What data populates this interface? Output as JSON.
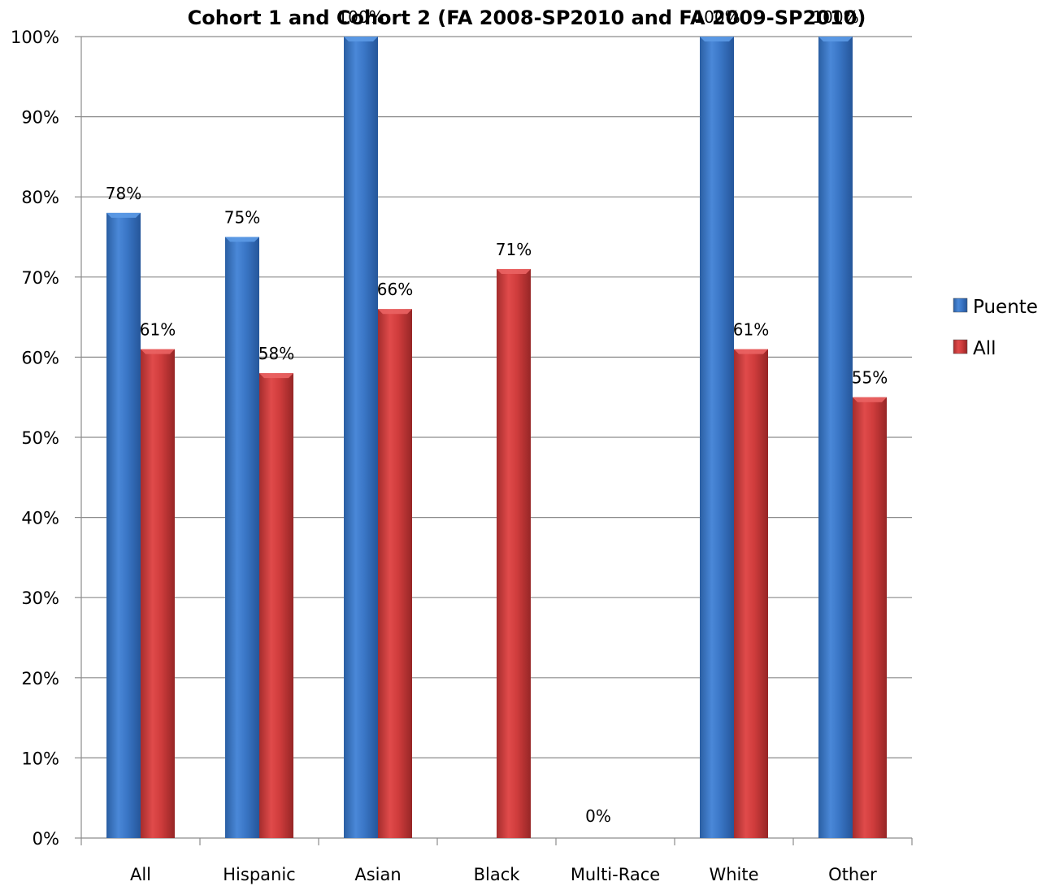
{
  "chart_data": {
    "type": "bar",
    "title": "Cohort 1 and Cohort 2 (FA 2008-SP2010 and FA 2009-SP2010)",
    "xlabel": "",
    "ylabel": "",
    "ylim": [
      0,
      1
    ],
    "yticks": [
      "0%",
      "10%",
      "20%",
      "30%",
      "40%",
      "50%",
      "60%",
      "70%",
      "80%",
      "90%",
      "100%"
    ],
    "categories": [
      "All",
      "Hispanic",
      "Asian",
      "Black",
      "Multi-Race",
      "White",
      "Other"
    ],
    "series": [
      {
        "name": "Puente",
        "color": "#3b78c8",
        "values": [
          0.78,
          0.75,
          1.0,
          null,
          0,
          1.0,
          1.0
        ],
        "labels": [
          "78%",
          "75%",
          "100%",
          "",
          "0%",
          "100%",
          "100%"
        ]
      },
      {
        "name": "All",
        "color": "#c83a3a",
        "values": [
          0.61,
          0.58,
          0.66,
          0.71,
          null,
          0.61,
          0.55
        ],
        "labels": [
          "61%",
          "58%",
          "66%",
          "71%",
          "",
          "61%",
          "55%"
        ]
      }
    ],
    "grid": true,
    "legend_position": "right"
  }
}
